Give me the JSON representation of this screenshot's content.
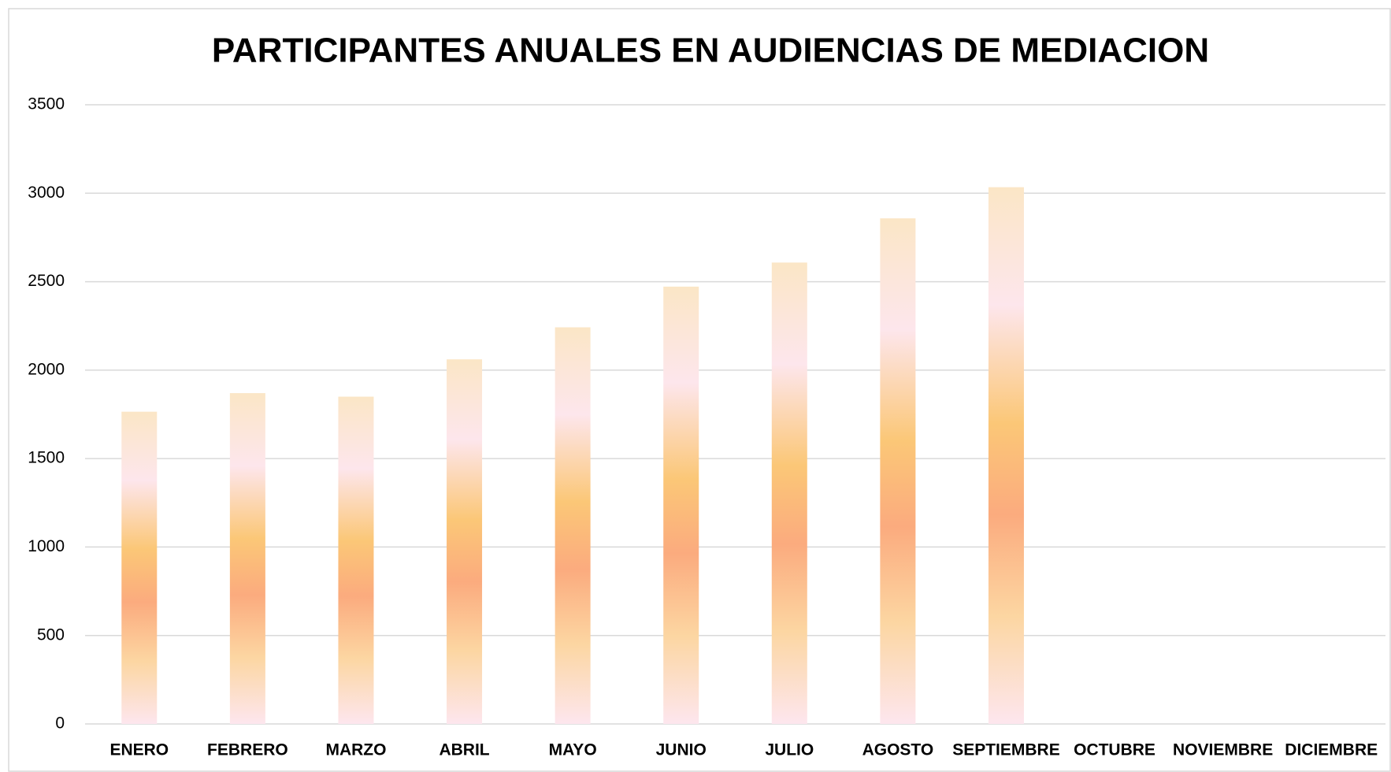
{
  "chart_data": {
    "type": "bar",
    "title": "PARTICIPANTES ANUALES EN AUDIENCIAS DE MEDIACION",
    "categories": [
      "ENERO",
      "FEBRERO",
      "MARZO",
      "ABRIL",
      "MAYO",
      "JUNIO",
      "JULIO",
      "AGOSTO",
      "SEPTIEMBRE",
      "OCTUBRE",
      "NOVIEMBRE",
      "DICIEMBRE"
    ],
    "values": [
      1765,
      1870,
      1850,
      2061,
      2242,
      2472,
      2608,
      2858,
      3034,
      null,
      null,
      null
    ],
    "ylim": [
      0,
      3500
    ],
    "yticks": [
      0,
      500,
      1000,
      1500,
      2000,
      2500,
      3000,
      3500
    ],
    "grid": true
  }
}
